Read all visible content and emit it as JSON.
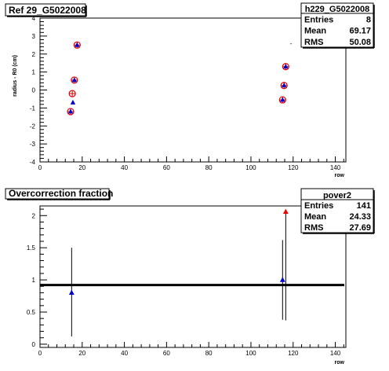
{
  "chart_data": [
    {
      "type": "scatter",
      "title": "Ref 29_G5022008",
      "xlabel": "row",
      "ylabel": "radius - R0 (cm)",
      "xlim": [
        0,
        145
      ],
      "ylim": [
        -4,
        4
      ],
      "xticks": [
        "0",
        "20",
        "40",
        "60",
        "80",
        "100",
        "120",
        "140"
      ],
      "yticks": [
        "-4",
        "-3",
        "-2",
        "-1",
        "0",
        "1",
        "2",
        "3",
        "4"
      ],
      "stats": {
        "name": "h229_G5022008",
        "rows": [
          {
            "label": "Entries",
            "value": "8"
          },
          {
            "label": "Mean",
            "value": "69.17"
          },
          {
            "label": "RMS",
            "value": "50.08"
          }
        ]
      },
      "series": [
        {
          "marker": "circle",
          "color": "#dd0000",
          "x": [
            14.5,
            15.3,
            16.3,
            17.6,
            115.0,
            115.7,
            116.5
          ],
          "y": [
            -1.2,
            -0.2,
            0.55,
            2.5,
            -0.55,
            0.25,
            1.3
          ]
        },
        {
          "marker": "triangle",
          "color": "#0000cc",
          "x": [
            14.5,
            15.6,
            16.3,
            17.6,
            115.0,
            115.7,
            116.5
          ],
          "y": [
            -1.2,
            -0.7,
            0.55,
            2.5,
            -0.55,
            0.25,
            1.3
          ]
        }
      ],
      "annotations": [
        {
          "text": "-",
          "x": 119,
          "y": 2.6
        }
      ]
    },
    {
      "type": "scatter",
      "title": "Overcorrection fraction",
      "xlabel": "row",
      "ylabel": "",
      "xlim": [
        0,
        145
      ],
      "ylim": [
        -0.05,
        2.15
      ],
      "xticks": [
        "0",
        "20",
        "40",
        "60",
        "80",
        "100",
        "120",
        "140"
      ],
      "yticks": [
        "0",
        "0.5",
        "1",
        "1.5",
        "2"
      ],
      "stats": {
        "name": "pover2",
        "rows": [
          {
            "label": "Entries",
            "value": "141"
          },
          {
            "label": "Mean",
            "value": "24.33"
          },
          {
            "label": "RMS",
            "value": "27.69"
          }
        ]
      },
      "reference_line": 0.92,
      "points": [
        {
          "x": 15,
          "y": 0.8,
          "err_low": 0.12,
          "err_high": 1.5,
          "color": "#0000cc"
        },
        {
          "x": 115,
          "y": 1.0,
          "err_low": 0.38,
          "err_high": 1.62,
          "color": "#0000cc"
        },
        {
          "x": 116.5,
          "y": 2.06,
          "err_low": 0.37,
          "err_high": 2.06,
          "color": "#ee0000"
        }
      ]
    }
  ]
}
